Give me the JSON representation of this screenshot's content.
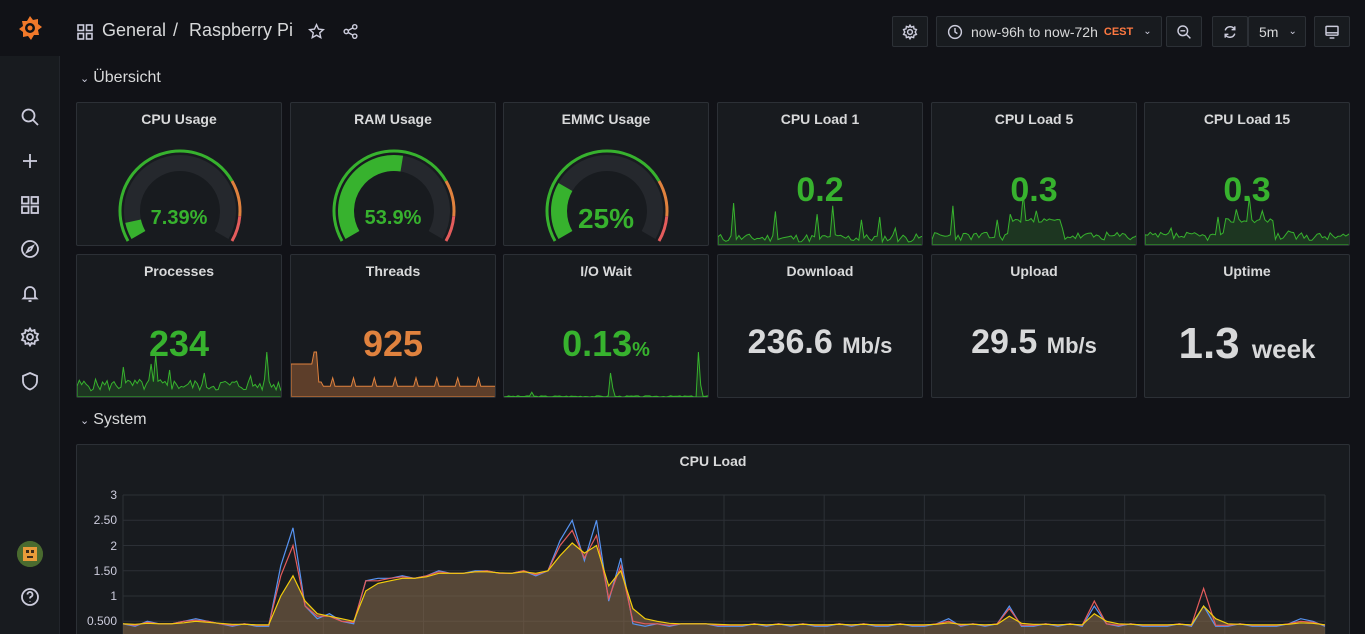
{
  "header": {
    "crumb_folder": "General",
    "crumb_sep": "/",
    "crumb_dashboard": "Raspberry Pi",
    "time_range": "now-96h to now-72h",
    "timezone": "CEST",
    "refresh_interval": "5m"
  },
  "rows": {
    "overview": "Übersicht",
    "system": "System"
  },
  "gauges": [
    {
      "title": "CPU Usage",
      "value": "7.39%",
      "fraction": 0.0739,
      "color": "#37b22e"
    },
    {
      "title": "RAM Usage",
      "value": "53.9%",
      "fraction": 0.539,
      "color": "#37b22e"
    },
    {
      "title": "EMMC Usage",
      "value": "25%",
      "fraction": 0.25,
      "color": "#37b22e"
    }
  ],
  "loads": [
    {
      "title": "CPU Load 1",
      "value": "0.2"
    },
    {
      "title": "CPU Load 5",
      "value": "0.3"
    },
    {
      "title": "CPU Load 15",
      "value": "0.3"
    }
  ],
  "processes": {
    "title": "Processes",
    "value": "234"
  },
  "threads": {
    "title": "Threads",
    "value": "925"
  },
  "iowait": {
    "title": "I/O Wait",
    "value": "0.13",
    "unit": "%"
  },
  "download": {
    "title": "Download",
    "value": "236.6",
    "unit": "Mb/s"
  },
  "upload": {
    "title": "Upload",
    "value": "29.5",
    "unit": "Mb/s"
  },
  "uptime": {
    "title": "Uptime",
    "value": "1.3",
    "unit": "week"
  },
  "colors": {
    "green": "#37b22e",
    "orange": "#e0823e",
    "yellow": "#f2cc0c",
    "blue": "#5794f2",
    "red": "#e45c5c",
    "stat_white": "#d8d9da"
  },
  "chart_data": {
    "type": "area",
    "title": "CPU Load",
    "ylim": [
      0,
      3
    ],
    "yticks": [
      "3",
      "2.50",
      "2",
      "1.50",
      "1",
      "0.500"
    ],
    "series": [
      {
        "color": "#5794f2",
        "values": [
          0.45,
          0.4,
          0.5,
          0.45,
          0.45,
          0.5,
          0.55,
          0.5,
          0.45,
          0.4,
          0.45,
          0.4,
          0.4,
          1.6,
          2.35,
          0.8,
          0.55,
          0.65,
          0.5,
          0.45,
          1.3,
          1.35,
          1.35,
          1.4,
          1.35,
          1.4,
          1.5,
          1.45,
          1.45,
          1.5,
          1.5,
          1.45,
          1.45,
          1.5,
          1.4,
          1.5,
          2.1,
          2.5,
          1.7,
          2.5,
          0.9,
          1.75,
          0.45,
          0.4,
          0.45,
          0.4,
          0.45,
          0.45,
          0.45,
          0.4,
          0.4,
          0.4,
          0.45,
          0.4,
          0.45,
          0.4,
          0.45,
          0.4,
          0.4,
          0.45,
          0.4,
          0.45,
          0.4,
          0.4,
          0.45,
          0.4,
          0.4,
          0.45,
          0.55,
          0.4,
          0.45,
          0.4,
          0.45,
          0.8,
          0.4,
          0.4,
          0.45,
          0.4,
          0.45,
          0.4,
          0.8,
          0.45,
          0.4,
          0.45,
          0.4,
          0.4,
          0.4,
          0.45,
          0.4,
          0.8,
          0.4,
          0.4,
          0.45,
          0.4,
          0.4,
          0.4,
          0.45,
          0.55,
          0.5,
          0.4
        ]
      },
      {
        "color": "#e45c5c",
        "values": [
          0.45,
          0.42,
          0.48,
          0.45,
          0.45,
          0.5,
          0.52,
          0.5,
          0.45,
          0.42,
          0.45,
          0.42,
          0.42,
          1.4,
          2.0,
          0.8,
          0.6,
          0.6,
          0.5,
          0.48,
          1.3,
          1.3,
          1.35,
          1.38,
          1.35,
          1.4,
          1.48,
          1.45,
          1.45,
          1.48,
          1.5,
          1.45,
          1.45,
          1.5,
          1.42,
          1.5,
          2.0,
          2.3,
          1.75,
          2.2,
          0.95,
          1.6,
          0.5,
          0.45,
          0.45,
          0.42,
          0.45,
          0.45,
          0.45,
          0.42,
          0.42,
          0.42,
          0.45,
          0.42,
          0.45,
          0.42,
          0.45,
          0.42,
          0.42,
          0.45,
          0.42,
          0.45,
          0.42,
          0.42,
          0.45,
          0.42,
          0.42,
          0.45,
          0.5,
          0.42,
          0.45,
          0.42,
          0.45,
          0.75,
          0.42,
          0.42,
          0.45,
          0.42,
          0.45,
          0.42,
          0.9,
          0.45,
          0.42,
          0.45,
          0.42,
          0.42,
          0.42,
          0.45,
          0.42,
          1.15,
          0.42,
          0.42,
          0.45,
          0.42,
          0.42,
          0.42,
          0.45,
          0.5,
          0.48,
          0.42
        ]
      },
      {
        "color": "#f2cc0c",
        "values": [
          0.45,
          0.44,
          0.46,
          0.45,
          0.45,
          0.47,
          0.5,
          0.48,
          0.46,
          0.44,
          0.44,
          0.43,
          0.43,
          1.0,
          1.4,
          0.9,
          0.65,
          0.6,
          0.55,
          0.5,
          1.1,
          1.25,
          1.3,
          1.35,
          1.35,
          1.38,
          1.45,
          1.45,
          1.45,
          1.48,
          1.48,
          1.46,
          1.45,
          1.48,
          1.45,
          1.5,
          1.8,
          2.05,
          1.85,
          2.0,
          1.2,
          1.5,
          0.75,
          0.55,
          0.5,
          0.46,
          0.45,
          0.45,
          0.45,
          0.44,
          0.43,
          0.43,
          0.44,
          0.43,
          0.44,
          0.43,
          0.44,
          0.43,
          0.43,
          0.44,
          0.43,
          0.44,
          0.43,
          0.43,
          0.44,
          0.43,
          0.43,
          0.44,
          0.47,
          0.44,
          0.44,
          0.43,
          0.44,
          0.6,
          0.46,
          0.44,
          0.44,
          0.43,
          0.44,
          0.43,
          0.65,
          0.5,
          0.45,
          0.44,
          0.43,
          0.43,
          0.43,
          0.44,
          0.43,
          0.8,
          0.55,
          0.45,
          0.44,
          0.43,
          0.43,
          0.43,
          0.44,
          0.47,
          0.46,
          0.43
        ]
      }
    ]
  }
}
